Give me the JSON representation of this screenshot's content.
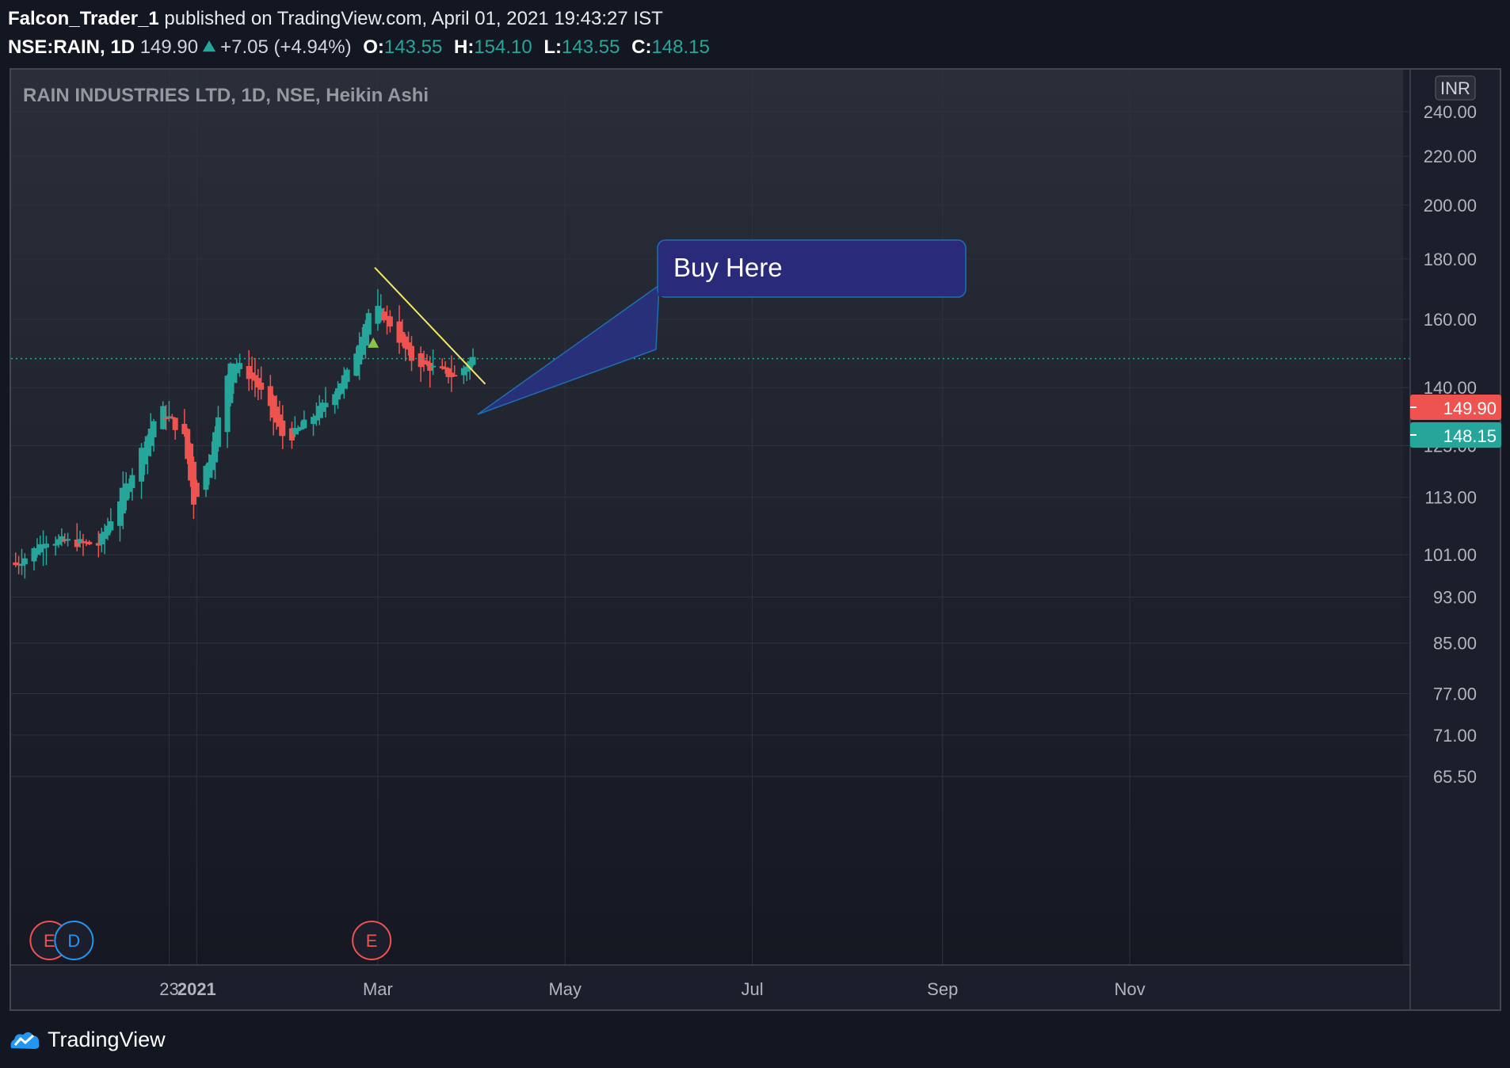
{
  "header": {
    "user": "Falcon_Trader_1",
    "published_text": " published on TradingView.com, April 01, 2021 19:43:27 IST",
    "symbol_interval": "NSE:RAIN, 1D",
    "last_price": "149.90",
    "change": "+7.05 (+4.94%)",
    "ohlc": [
      {
        "label": "O:",
        "value": "143.55"
      },
      {
        "label": "H:",
        "value": "154.10"
      },
      {
        "label": "L:",
        "value": "143.55"
      },
      {
        "label": "C:",
        "value": "148.15"
      }
    ]
  },
  "legend_title": "RAIN INDUSTRIES LTD, 1D, NSE, Heikin Ashi",
  "currency_badge": "INR",
  "price_badges": {
    "last": "149.90",
    "close": "148.15",
    "last_color": "#ef5350",
    "close_color": "#26a69a"
  },
  "annotation": {
    "text": "Buy Here"
  },
  "events": {
    "earnings_label": "E",
    "dividend_label": "D"
  },
  "footer": {
    "brand": "TradingView"
  },
  "chart_data": {
    "type": "candlestick",
    "style": "Heikin Ashi",
    "scale": "log",
    "grid": true,
    "up_color": "#26a69a",
    "down_color": "#ef5350",
    "y_ticks": [
      "240.00",
      "220.00",
      "200.00",
      "180.00",
      "160.00",
      "140.00",
      "125.00",
      "113.00",
      "101.00",
      "93.00",
      "85.00",
      "77.00",
      "71.00",
      "65.50"
    ],
    "x_ticks": [
      "23",
      "2021",
      "Mar",
      "May",
      "Jul",
      "Sep",
      "Nov"
    ],
    "series_anchors": [
      {
        "date": "2020-11-03",
        "close": 99
      },
      {
        "date": "2020-11-13",
        "close": 104
      },
      {
        "date": "2020-11-30",
        "close": 103
      },
      {
        "date": "2020-12-10",
        "close": 117
      },
      {
        "date": "2020-12-20",
        "close": 135
      },
      {
        "date": "2020-12-28",
        "close": 127
      },
      {
        "date": "2020-12-31",
        "close": 112
      },
      {
        "date": "2021-01-06",
        "close": 124
      },
      {
        "date": "2021-01-12",
        "close": 148
      },
      {
        "date": "2021-01-20",
        "close": 142
      },
      {
        "date": "2021-01-30",
        "close": 126
      },
      {
        "date": "2021-02-10",
        "close": 134
      },
      {
        "date": "2021-02-20",
        "close": 145
      },
      {
        "date": "2021-02-27",
        "close": 165
      },
      {
        "date": "2021-03-04",
        "close": 160
      },
      {
        "date": "2021-03-12",
        "close": 148
      },
      {
        "date": "2021-03-20",
        "close": 145
      },
      {
        "date": "2021-03-26",
        "close": 143
      },
      {
        "date": "2021-04-01",
        "close": 148.15
      }
    ],
    "trendline": {
      "from": {
        "date": "2021-02-28",
        "price": 177
      },
      "to": {
        "date": "2021-04-05",
        "price": 141
      }
    },
    "events": [
      {
        "type": "earnings",
        "date": "2020-11-14"
      },
      {
        "type": "dividend",
        "date": "2020-11-22"
      },
      {
        "type": "earnings",
        "date": "2021-02-27"
      }
    ]
  }
}
